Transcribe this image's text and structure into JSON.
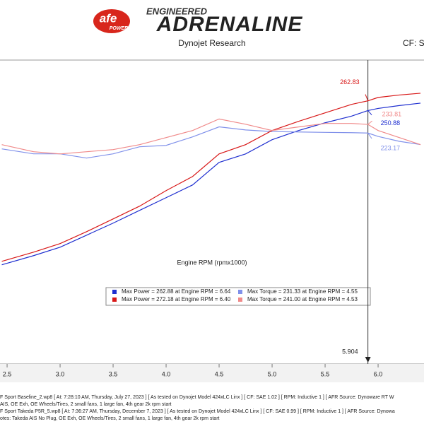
{
  "header": {
    "logo": "afe",
    "logo_sub": "POWER",
    "brand_top": "ENGINEERED",
    "brand": "ADRENALINE",
    "subtitle": "Dynojet Research",
    "cf": "CF: SA"
  },
  "chart_data": {
    "type": "line",
    "x_label": "Engine RPM (rpmx1000)",
    "x": [
      2.45,
      2.75,
      3.0,
      3.25,
      3.5,
      3.75,
      4.0,
      4.25,
      4.5,
      4.75,
      5.0,
      5.25,
      5.5,
      5.75,
      5.904,
      6.0,
      6.2,
      6.4
    ],
    "xlim": [
      2.433,
      6.433
    ],
    "xticks": [
      2.5,
      {
        "value": 3,
        "label": "3.0"
      },
      3.5,
      {
        "value": 4,
        "label": "4.0"
      },
      4.5,
      {
        "value": 5,
        "label": "5.0"
      },
      5.5,
      {
        "value": 6,
        "label": "6.0"
      }
    ],
    "ylim": [
      -61,
      313
    ],
    "cursor_x": 5.904,
    "series": [
      {
        "name": "Max Power = 262.88 at Engine RPM = 6.64",
        "color": "#1f2fd0",
        "values": [
          61.0,
          72.3,
          82.7,
          97.5,
          112.3,
          128.0,
          143.6,
          159.3,
          187.1,
          197.5,
          215.0,
          226.3,
          235.8,
          244.0,
          250.88,
          253.5,
          257.0,
          260.0
        ]
      },
      {
        "name": "Max Torque = 231.33 at Engine RPM = 4.55",
        "color": "#8191ea",
        "values": [
          203.7,
          197.6,
          197.6,
          192.4,
          197.6,
          206.3,
          208.0,
          218.5,
          230.8,
          227.0,
          225.0,
          224.5,
          224.0,
          223.6,
          223.17,
          219.0,
          213.0,
          209.0
        ]
      },
      {
        "name": "Max Power = 272.18 at Engine RPM = 6.40",
        "color": "#d81818",
        "values": [
          65.3,
          76.6,
          87.1,
          101.8,
          117.5,
          133.2,
          152.3,
          169.7,
          197.5,
          208.9,
          226.3,
          237.6,
          248.0,
          258.5,
          262.83,
          267.0,
          270.0,
          272.18
        ]
      },
      {
        "name": "Max Torque = 241.00 at Engine RPM = 4.53",
        "color": "#f08a8a",
        "values": [
          208.9,
          200.2,
          197.5,
          200.2,
          202.8,
          208.9,
          217.6,
          226.3,
          240.5,
          234.0,
          226.3,
          230.7,
          235.0,
          235.0,
          233.81,
          226.3,
          217.6,
          208.9
        ]
      }
    ]
  },
  "notes": [
    "F Sport Baseline_2.wp8 [ At: 7:28:10 AM, Thursday, July 27, 2023 ] [ As tested on Dynojet Model 424xLC Linx ] [ CF: SAE 1.02 ] [ RPM: Inductive 1 ] [ AFR Source: Dynoware RT W",
    "AIS, OE Exh, OE Wheels/Tires, 2 small fans, 1 large fan, 4th gear 2k rpm start",
    "F Sport Takeda P5R_5.wp8 [ At: 7:36:27 AM, Thursday, December 7, 2023 ] [ As tested on Dynojet Model 424xLC Linx ] [ CF: SAE 0.99 ] [ RPM: Inductive 1 ] [ AFR Source: Dynowa",
    "otes: Takeda AIS No Plug, OE Exh, OE Wheels/Tires, 2 small fans, 1 large fan, 4th gear 2k rpm start"
  ]
}
